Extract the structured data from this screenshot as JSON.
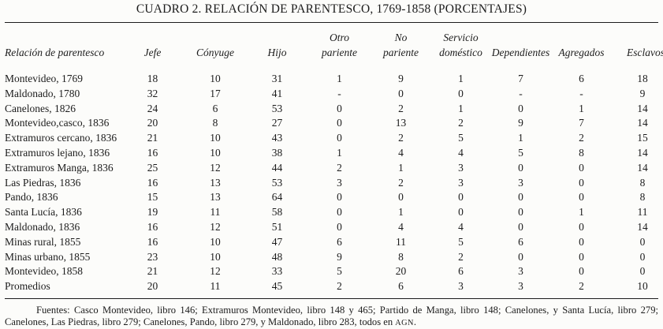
{
  "page": {
    "background_color": "#fcfcfa",
    "ink_color": "#1c1c1c"
  },
  "title": "CUADRO 2. RELACIÓN DE PARENTESCO, 1769-1858 (PORCENTAJES)",
  "table": {
    "columns": [
      {
        "label": "Relación de parentesco"
      },
      {
        "label": "Jefe"
      },
      {
        "label": "Cónyuge"
      },
      {
        "label": "Hijo"
      },
      {
        "line1": "Otro",
        "line2": "pariente"
      },
      {
        "line1": "No",
        "line2": "pariente"
      },
      {
        "line1": "Servicio",
        "line2": "doméstico"
      },
      {
        "label": "Dependientes"
      },
      {
        "label": "Agregados"
      },
      {
        "label": "Esclavos"
      }
    ],
    "rows": [
      {
        "label": "Montevideo, 1769",
        "values": [
          "18",
          "10",
          "31",
          "1",
          "9",
          "1",
          "7",
          "6",
          "18"
        ]
      },
      {
        "label": "Maldonado, 1780",
        "values": [
          "32",
          "17",
          "41",
          "-",
          "0",
          "0",
          "-",
          "-",
          "9"
        ]
      },
      {
        "label": "Canelones, 1826",
        "values": [
          "24",
          "6",
          "53",
          "0",
          "2",
          "1",
          "0",
          "1",
          "14"
        ]
      },
      {
        "label": "Montevideo,casco, 1836",
        "values": [
          "20",
          "8",
          "27",
          "0",
          "13",
          "2",
          "9",
          "7",
          "14"
        ]
      },
      {
        "label": "Extramuros cercano, 1836",
        "values": [
          "21",
          "10",
          "43",
          "0",
          "2",
          "5",
          "1",
          "2",
          "15"
        ]
      },
      {
        "label": "Extramuros lejano, 1836",
        "values": [
          "16",
          "10",
          "38",
          "1",
          "4",
          "4",
          "5",
          "8",
          "14"
        ]
      },
      {
        "label": "Extramuros Manga, 1836",
        "values": [
          "25",
          "12",
          "44",
          "2",
          "1",
          "3",
          "0",
          "0",
          "14"
        ]
      },
      {
        "label": "Las Piedras, 1836",
        "values": [
          "16",
          "13",
          "53",
          "3",
          "2",
          "3",
          "3",
          "0",
          "8"
        ]
      },
      {
        "label": "Pando, 1836",
        "values": [
          "15",
          "13",
          "64",
          "0",
          "0",
          "0",
          "0",
          "0",
          "8"
        ]
      },
      {
        "label": "Santa Lucía, 1836",
        "values": [
          "19",
          "11",
          "58",
          "0",
          "1",
          "0",
          "0",
          "1",
          "11"
        ]
      },
      {
        "label": "Maldonado, 1836",
        "values": [
          "16",
          "12",
          "51",
          "0",
          "4",
          "4",
          "0",
          "0",
          "14"
        ]
      },
      {
        "label": "Minas rural, 1855",
        "values": [
          "16",
          "10",
          "47",
          "6",
          "11",
          "5",
          "6",
          "0",
          "0"
        ]
      },
      {
        "label": "Minas urbano, 1855",
        "values": [
          "23",
          "10",
          "48",
          "9",
          "8",
          "2",
          "0",
          "0",
          "0"
        ]
      },
      {
        "label": "Montevideo, 1858",
        "values": [
          "21",
          "12",
          "33",
          "5",
          "20",
          "6",
          "3",
          "0",
          "0"
        ]
      },
      {
        "label": "Promedios",
        "values": [
          "20",
          "11",
          "45",
          "2",
          "6",
          "3",
          "3",
          "2",
          "10"
        ]
      }
    ]
  },
  "footnote": {
    "text": "Fuentes: Casco Montevideo, libro 146; Extramuros Montevideo, libro 148 y 465; Partido de Manga, libro 148; Canelones, y Santa Lucía, libro 279; Canelones, Las Piedras, libro 279; Canelones, Pando, libro 279, y Maldonado, libro 283, todos en ",
    "archive": "AGN",
    "period": "."
  }
}
